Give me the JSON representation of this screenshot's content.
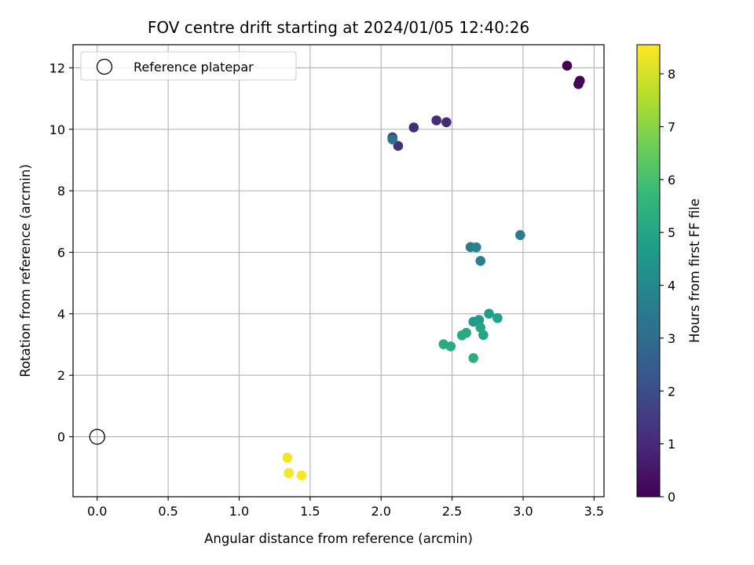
{
  "chart_data": {
    "type": "scatter",
    "title": "FOV centre drift starting at 2024/01/05 12:40:26",
    "xlabel": "Angular distance from reference (arcmin)",
    "ylabel": "Rotation from reference (arcmin)",
    "xlim": [
      -0.17,
      3.57
    ],
    "ylim": [
      -1.95,
      12.75
    ],
    "xticks": [
      0.0,
      0.5,
      1.0,
      1.5,
      2.0,
      2.5,
      3.0,
      3.5
    ],
    "xtick_labels": [
      "0.0",
      "0.5",
      "1.0",
      "1.5",
      "2.0",
      "2.5",
      "3.0",
      "3.5"
    ],
    "yticks": [
      0,
      2,
      4,
      6,
      8,
      10,
      12
    ],
    "ytick_labels": [
      "0",
      "2",
      "4",
      "6",
      "8",
      "10",
      "12"
    ],
    "grid": true,
    "colormap": "viridis",
    "viridis_stops": [
      "#440154",
      "#482878",
      "#3e4a89",
      "#31688e",
      "#26828e",
      "#1f9e89",
      "#35b779",
      "#6ece58",
      "#b5de2b",
      "#fde725"
    ],
    "colorbar": {
      "label": "Hours from first FF file",
      "range": [
        0,
        8.55
      ],
      "ticks": [
        0,
        1,
        2,
        3,
        4,
        5,
        6,
        7,
        8
      ],
      "tick_labels": [
        "0",
        "1",
        "2",
        "3",
        "4",
        "5",
        "6",
        "7",
        "8"
      ]
    },
    "legend": {
      "position": "top-left",
      "entries": [
        {
          "label": "Reference platepar",
          "marker": "open-circle"
        }
      ]
    },
    "reference_point": {
      "x": 0.0,
      "y": 0.0
    },
    "points": [
      {
        "x": 3.31,
        "y": 12.07,
        "hours": 0.0
      },
      {
        "x": 3.4,
        "y": 11.58,
        "hours": 0.05
      },
      {
        "x": 3.39,
        "y": 11.47,
        "hours": 0.1
      },
      {
        "x": 2.46,
        "y": 10.23,
        "hours": 1.0
      },
      {
        "x": 2.39,
        "y": 10.29,
        "hours": 1.05
      },
      {
        "x": 2.23,
        "y": 10.06,
        "hours": 1.1
      },
      {
        "x": 2.12,
        "y": 9.46,
        "hours": 1.15
      },
      {
        "x": 2.08,
        "y": 9.74,
        "hours": 1.6
      },
      {
        "x": 2.08,
        "y": 9.67,
        "hours": 3.2
      },
      {
        "x": 2.98,
        "y": 6.56,
        "hours": 3.6
      },
      {
        "x": 2.63,
        "y": 6.17,
        "hours": 3.7
      },
      {
        "x": 2.67,
        "y": 6.16,
        "hours": 3.75
      },
      {
        "x": 2.7,
        "y": 5.72,
        "hours": 3.8
      },
      {
        "x": 2.65,
        "y": 3.74,
        "hours": 4.6
      },
      {
        "x": 2.69,
        "y": 3.8,
        "hours": 4.7
      },
      {
        "x": 2.76,
        "y": 4.0,
        "hours": 4.8
      },
      {
        "x": 2.82,
        "y": 3.86,
        "hours": 4.9
      },
      {
        "x": 2.7,
        "y": 3.55,
        "hours": 5.0
      },
      {
        "x": 2.72,
        "y": 3.31,
        "hours": 5.05
      },
      {
        "x": 2.6,
        "y": 3.38,
        "hours": 5.1
      },
      {
        "x": 2.57,
        "y": 3.3,
        "hours": 5.15
      },
      {
        "x": 2.44,
        "y": 3.01,
        "hours": 5.2
      },
      {
        "x": 2.49,
        "y": 2.94,
        "hours": 5.25
      },
      {
        "x": 2.65,
        "y": 2.56,
        "hours": 5.3
      },
      {
        "x": 1.34,
        "y": -0.68,
        "hours": 8.4
      },
      {
        "x": 1.35,
        "y": -1.18,
        "hours": 8.45
      },
      {
        "x": 1.44,
        "y": -1.26,
        "hours": 8.5
      }
    ]
  }
}
